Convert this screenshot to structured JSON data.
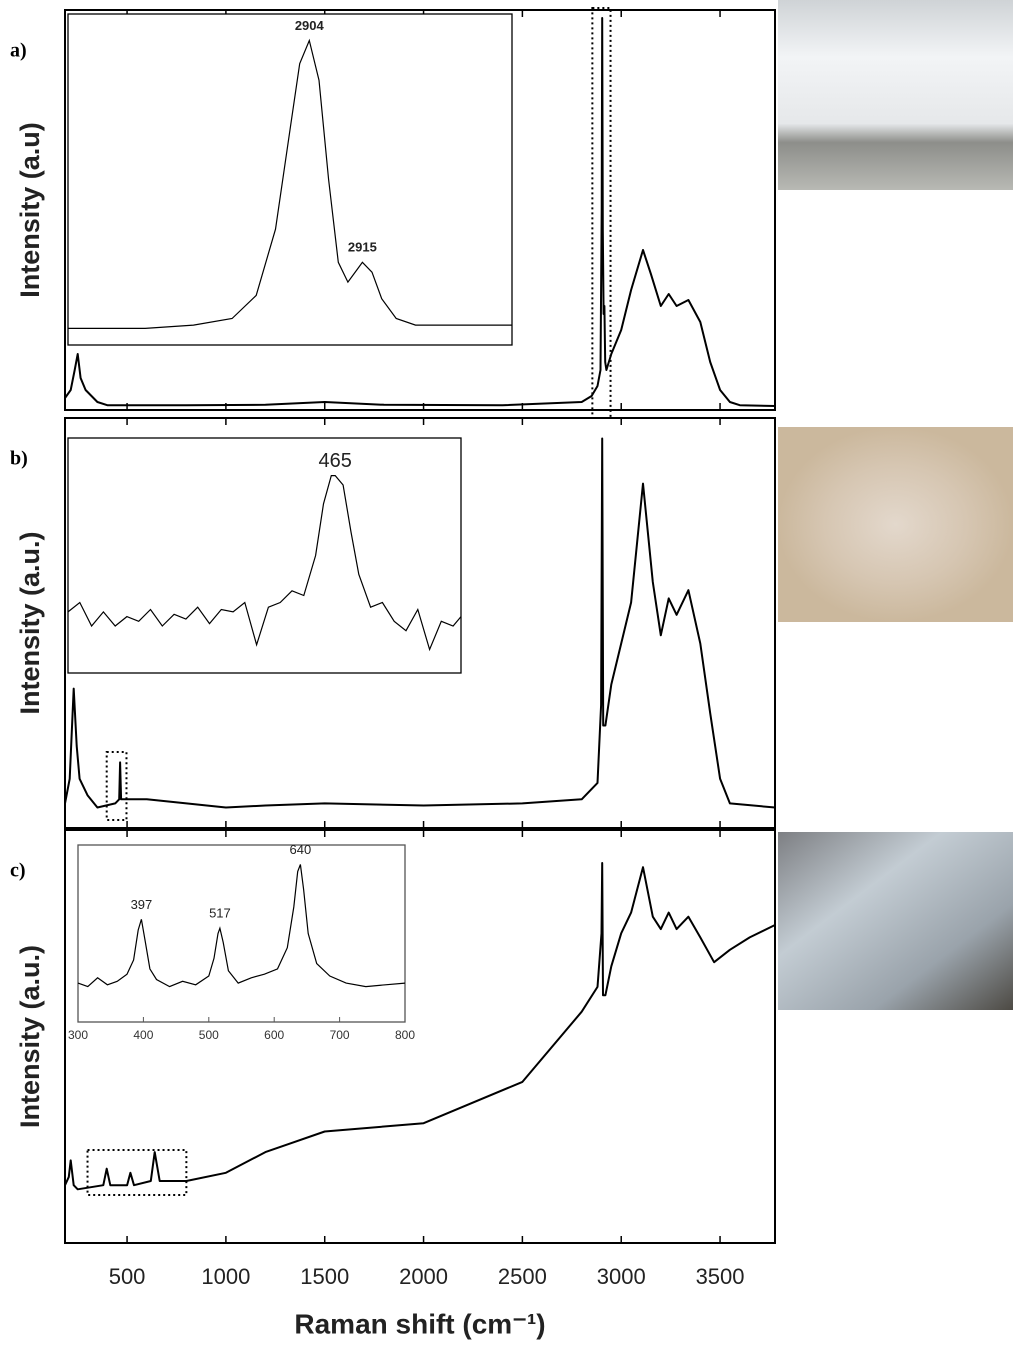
{
  "chart_data": [
    {
      "type": "line",
      "panel_label": "a)",
      "y_label": "Intensity (a.u)",
      "color": "#000000",
      "xlim": [
        186,
        3778
      ],
      "ylim": [
        0,
        1
      ],
      "x": [
        186,
        215,
        235,
        250,
        265,
        290,
        320,
        350,
        400,
        800,
        1200,
        1500,
        1800,
        2400,
        2800,
        2850,
        2880,
        2895,
        2901,
        2904,
        2907,
        2911,
        2915,
        2919,
        2925,
        2950,
        3000,
        3050,
        3110,
        3150,
        3200,
        3240,
        3280,
        3340,
        3400,
        3450,
        3500,
        3550,
        3600,
        3778
      ],
      "values": [
        0.03,
        0.05,
        0.1,
        0.14,
        0.08,
        0.05,
        0.035,
        0.02,
        0.012,
        0.012,
        0.013,
        0.02,
        0.013,
        0.012,
        0.02,
        0.035,
        0.06,
        0.1,
        0.5,
        0.98,
        0.45,
        0.24,
        0.26,
        0.12,
        0.1,
        0.14,
        0.2,
        0.3,
        0.4,
        0.34,
        0.26,
        0.29,
        0.26,
        0.275,
        0.22,
        0.12,
        0.05,
        0.02,
        0.012,
        0.01
      ],
      "inset": {
        "xlim": [
          2854,
          2946
        ],
        "ylim": [
          0,
          1
        ],
        "x": [
          2854,
          2870,
          2880,
          2888,
          2893,
          2897,
          2900,
          2902,
          2904,
          2906,
          2908,
          2910,
          2912,
          2914,
          2915,
          2917,
          2919,
          2922,
          2926,
          2935,
          2946
        ],
        "values": [
          0.05,
          0.05,
          0.06,
          0.08,
          0.15,
          0.35,
          0.65,
          0.85,
          0.92,
          0.8,
          0.5,
          0.25,
          0.19,
          0.23,
          0.25,
          0.22,
          0.14,
          0.08,
          0.06,
          0.06,
          0.06
        ],
        "peak_labels": [
          2904,
          2915
        ]
      }
    },
    {
      "type": "line",
      "panel_label": "b)",
      "y_label": "Intensity (a.u.)",
      "color": "#000000",
      "xlim": [
        186,
        3778
      ],
      "ylim": [
        0,
        1
      ],
      "x": [
        186,
        210,
        230,
        245,
        260,
        300,
        350,
        440,
        460,
        465,
        470,
        490,
        600,
        800,
        1000,
        1200,
        1500,
        2000,
        2500,
        2800,
        2880,
        2898,
        2904,
        2909,
        2920,
        2950,
        3000,
        3050,
        3110,
        3160,
        3200,
        3240,
        3280,
        3340,
        3400,
        3450,
        3500,
        3550,
        3778
      ],
      "values": [
        0.06,
        0.12,
        0.34,
        0.2,
        0.12,
        0.08,
        0.05,
        0.06,
        0.07,
        0.16,
        0.07,
        0.07,
        0.07,
        0.06,
        0.05,
        0.055,
        0.06,
        0.055,
        0.06,
        0.07,
        0.11,
        0.3,
        0.95,
        0.25,
        0.25,
        0.35,
        0.45,
        0.55,
        0.84,
        0.6,
        0.47,
        0.56,
        0.52,
        0.58,
        0.45,
        0.28,
        0.12,
        0.06,
        0.05
      ],
      "inset": {
        "xlim": [
          397,
          497
        ],
        "ylim": [
          0,
          1
        ],
        "x": [
          397,
          400,
          403,
          406,
          409,
          412,
          415,
          418,
          421,
          424,
          427,
          430,
          433,
          436,
          439,
          442,
          445,
          448,
          451,
          454,
          457,
          460,
          462,
          464,
          465,
          467,
          469,
          471,
          474,
          477,
          480,
          483,
          486,
          489,
          492,
          495,
          497
        ],
        "values": [
          0.26,
          0.3,
          0.2,
          0.26,
          0.2,
          0.24,
          0.22,
          0.27,
          0.2,
          0.25,
          0.23,
          0.28,
          0.21,
          0.27,
          0.26,
          0.3,
          0.12,
          0.28,
          0.3,
          0.35,
          0.33,
          0.5,
          0.72,
          0.84,
          0.84,
          0.8,
          0.6,
          0.42,
          0.28,
          0.3,
          0.22,
          0.18,
          0.27,
          0.1,
          0.22,
          0.2,
          0.24
        ],
        "peak_labels": [
          465
        ]
      }
    },
    {
      "type": "line",
      "panel_label": "c)",
      "y_label": "Intensity (a.u.)",
      "color": "#000000",
      "x_label": "Raman shift (cm⁻¹)",
      "xlim": [
        186,
        3778
      ],
      "ylim": [
        0,
        1
      ],
      "xticks": [
        500,
        1000,
        1500,
        2000,
        2500,
        3000,
        3500
      ],
      "x": [
        186,
        205,
        215,
        230,
        250,
        380,
        397,
        415,
        500,
        517,
        535,
        620,
        640,
        665,
        800,
        1000,
        1200,
        1500,
        2000,
        2500,
        2800,
        2880,
        2900,
        2904,
        2908,
        2920,
        2950,
        3000,
        3050,
        3110,
        3160,
        3200,
        3240,
        3280,
        3340,
        3400,
        3470,
        3550,
        3650,
        3778
      ],
      "values": [
        0.14,
        0.16,
        0.2,
        0.14,
        0.13,
        0.14,
        0.18,
        0.14,
        0.14,
        0.17,
        0.14,
        0.15,
        0.22,
        0.15,
        0.15,
        0.17,
        0.22,
        0.27,
        0.29,
        0.39,
        0.56,
        0.62,
        0.75,
        0.92,
        0.6,
        0.6,
        0.67,
        0.75,
        0.8,
        0.91,
        0.79,
        0.76,
        0.8,
        0.76,
        0.79,
        0.74,
        0.68,
        0.71,
        0.74,
        0.77
      ],
      "inset": {
        "xlim": [
          300,
          800
        ],
        "ylim": [
          0,
          1
        ],
        "xticks": [
          300,
          400,
          500,
          600,
          700,
          800
        ],
        "x": [
          300,
          315,
          330,
          345,
          360,
          375,
          385,
          392,
          397,
          403,
          410,
          420,
          440,
          460,
          480,
          500,
          508,
          514,
          517,
          522,
          530,
          545,
          565,
          585,
          605,
          620,
          630,
          636,
          640,
          645,
          652,
          665,
          685,
          710,
          740,
          770,
          800
        ],
        "values": [
          0.22,
          0.2,
          0.25,
          0.21,
          0.23,
          0.27,
          0.35,
          0.52,
          0.58,
          0.45,
          0.3,
          0.24,
          0.2,
          0.23,
          0.21,
          0.26,
          0.36,
          0.5,
          0.53,
          0.45,
          0.29,
          0.22,
          0.25,
          0.27,
          0.3,
          0.42,
          0.65,
          0.85,
          0.89,
          0.75,
          0.5,
          0.33,
          0.26,
          0.22,
          0.2,
          0.21,
          0.22
        ],
        "peak_labels": [
          397,
          517,
          640
        ]
      }
    }
  ]
}
